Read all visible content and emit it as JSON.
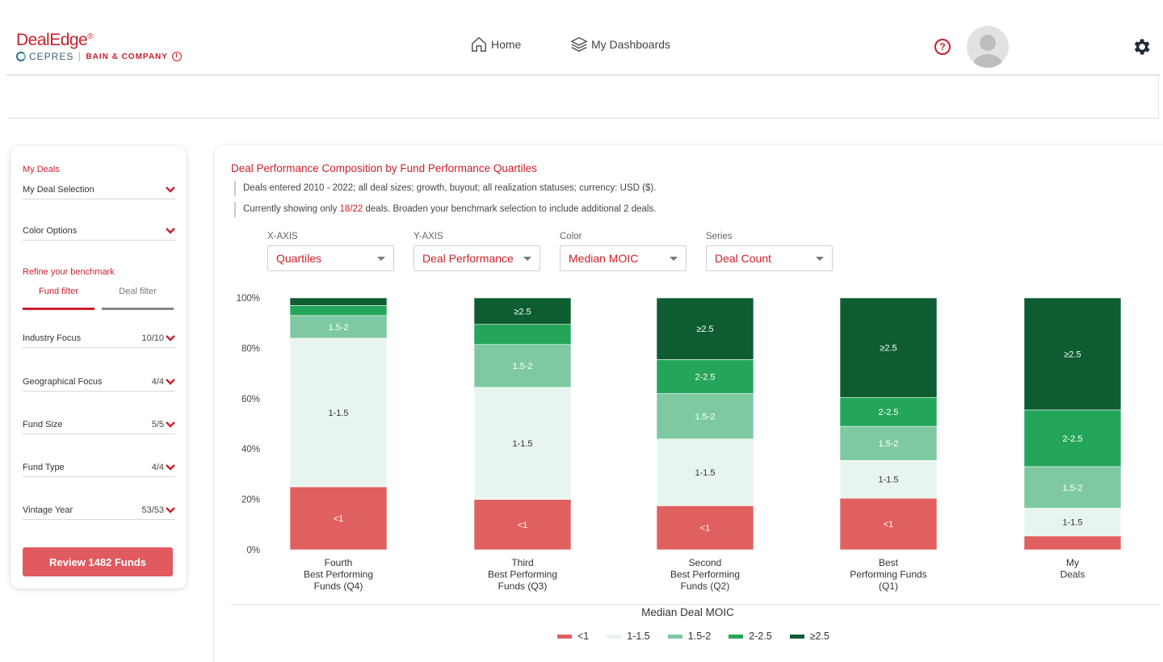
{
  "header": {
    "logo_main": "DealEdge",
    "logo_reg": "®",
    "logo_cepres": "CEPRES",
    "logo_bain": "BAIN & COMPANY",
    "nav_home": "Home",
    "nav_dashboards": "My Dashboards",
    "help": "?"
  },
  "sidebar": {
    "my_deals_label": "My Deals",
    "my_deal_selection": "My Deal Selection",
    "color_options": "Color Options",
    "refine_label": "Refine your benchmark",
    "tab_fund": "Fund filter",
    "tab_deal": "Deal filter",
    "filters": [
      {
        "label": "Industry Focus",
        "value": "10/10"
      },
      {
        "label": "Geographical Focus",
        "value": "4/4"
      },
      {
        "label": "Fund Size",
        "value": "5/5"
      },
      {
        "label": "Fund Type",
        "value": "4/4"
      },
      {
        "label": "Vintage Year",
        "value": "53/53"
      }
    ],
    "review_button": "Review 1482 Funds"
  },
  "main": {
    "title": "Deal Performance Composition by Fund Performance Quartiles",
    "note1": "Deals entered 2010 - 2022; all deal sizes; growth, buyout; all realization statuses; currency: USD ($).",
    "note2_pre": "Currently showing only ",
    "note2_hl": "18/22",
    "note2_post": " deals. Broaden your benchmark selection to include additional 2 deals.",
    "dropdowns": [
      {
        "label": "X-AXIS",
        "value": "Quartiles"
      },
      {
        "label": "Y-AXIS",
        "value": "Deal Performance"
      },
      {
        "label": "Color",
        "value": "Median MOIC"
      },
      {
        "label": "Series",
        "value": "Deal Count"
      }
    ]
  },
  "chart_data": {
    "type": "bar",
    "stacked": true,
    "categories": [
      [
        "Fourth",
        "Best Performing",
        "Funds (Q4)"
      ],
      [
        "Third",
        "Best Performing",
        "Funds (Q3)"
      ],
      [
        "Second",
        "Best Performing",
        "Funds (Q2)"
      ],
      [
        "Best",
        "Performing Funds",
        "(Q1)"
      ],
      [
        "My",
        "Deals"
      ]
    ],
    "series": [
      {
        "name": "<1",
        "color": "#e06060",
        "values": [
          25,
          20,
          17.5,
          20.5,
          5.5
        ]
      },
      {
        "name": "1-1.5",
        "color": "#e8f5ee",
        "values": [
          59,
          44.5,
          26.5,
          15,
          11
        ]
      },
      {
        "name": "1.5-2",
        "color": "#7ec9a1",
        "values": [
          9,
          17,
          18,
          13.5,
          16.5
        ]
      },
      {
        "name": "2-2.5",
        "color": "#24a65a",
        "values": [
          4,
          8,
          13.5,
          11.5,
          22.5
        ]
      },
      {
        "name": "≥2.5",
        "color": "#0d5c32",
        "values": [
          3,
          10.5,
          24.5,
          39.5,
          44.5
        ]
      }
    ],
    "segment_labels": [
      [
        "<1",
        "1-1.5",
        "1.5-2",
        "",
        ""
      ],
      [
        "<1",
        "1-1.5",
        "1.5-2",
        "",
        "≥2.5"
      ],
      [
        "<1",
        "1-1.5",
        "1.5-2",
        "2-2.5",
        "≥2.5"
      ],
      [
        "<1",
        "1-1.5",
        "1.5-2",
        "2-2.5",
        "≥2.5"
      ],
      [
        "",
        "1-1.5",
        "1.5-2",
        "2-2.5",
        "≥2.5"
      ]
    ],
    "yticks": [
      "0%",
      "20%",
      "40%",
      "60%",
      "80%",
      "100%"
    ],
    "ylim": [
      0,
      100
    ],
    "legend_title": "Median Deal MOIC",
    "legend_position": "bottom"
  }
}
